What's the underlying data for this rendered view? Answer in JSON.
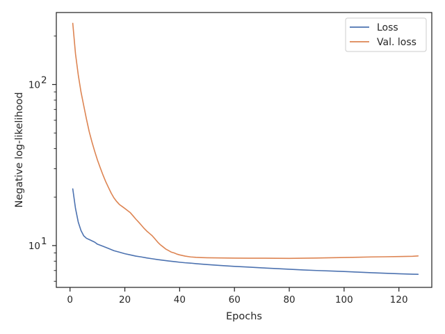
{
  "chart_data": {
    "type": "line",
    "xlabel": "Epochs",
    "ylabel": "Negative log-likelihood",
    "xlim": [
      -5,
      132
    ],
    "ylim": [
      5.5,
      280
    ],
    "yscale": "log",
    "grid": false,
    "legend_position": "top-right",
    "x_ticks": [
      0,
      20,
      40,
      60,
      80,
      100,
      120
    ],
    "y_ticks": [
      {
        "value": 10,
        "base": "10",
        "exp": "1"
      },
      {
        "value": 100,
        "base": "10",
        "exp": "2"
      }
    ],
    "series": [
      {
        "name": "Loss",
        "color": "#4c72b0",
        "points": [
          [
            1,
            22.5
          ],
          [
            2,
            17
          ],
          [
            3,
            14
          ],
          [
            4,
            12.4
          ],
          [
            5,
            11.5
          ],
          [
            6,
            11.1
          ],
          [
            7,
            10.9
          ],
          [
            8,
            10.7
          ],
          [
            9,
            10.5
          ],
          [
            10,
            10.2
          ],
          [
            12,
            9.9
          ],
          [
            14,
            9.6
          ],
          [
            16,
            9.3
          ],
          [
            18,
            9.1
          ],
          [
            20,
            8.9
          ],
          [
            22,
            8.75
          ],
          [
            24,
            8.6
          ],
          [
            26,
            8.5
          ],
          [
            28,
            8.38
          ],
          [
            30,
            8.28
          ],
          [
            32,
            8.18
          ],
          [
            34,
            8.1
          ],
          [
            36,
            8.02
          ],
          [
            38,
            7.95
          ],
          [
            40,
            7.88
          ],
          [
            42,
            7.82
          ],
          [
            44,
            7.78
          ],
          [
            46,
            7.72
          ],
          [
            48,
            7.67
          ],
          [
            50,
            7.62
          ],
          [
            55,
            7.52
          ],
          [
            60,
            7.43
          ],
          [
            65,
            7.35
          ],
          [
            70,
            7.27
          ],
          [
            75,
            7.2
          ],
          [
            80,
            7.13
          ],
          [
            85,
            7.06
          ],
          [
            90,
            7.0
          ],
          [
            95,
            6.95
          ],
          [
            100,
            6.9
          ],
          [
            105,
            6.84
          ],
          [
            110,
            6.78
          ],
          [
            115,
            6.73
          ],
          [
            120,
            6.68
          ],
          [
            125,
            6.64
          ],
          [
            127,
            6.63
          ]
        ]
      },
      {
        "name": "Val. loss",
        "color": "#dd8452",
        "points": [
          [
            1,
            240
          ],
          [
            2,
            155
          ],
          [
            3,
            115
          ],
          [
            4,
            90
          ],
          [
            5,
            74
          ],
          [
            6,
            61
          ],
          [
            7,
            51
          ],
          [
            8,
            44
          ],
          [
            9,
            38.5
          ],
          [
            10,
            34
          ],
          [
            11,
            30.5
          ],
          [
            12,
            27.5
          ],
          [
            13,
            25
          ],
          [
            14,
            23
          ],
          [
            15,
            21.2
          ],
          [
            16,
            19.8
          ],
          [
            17,
            18.8
          ],
          [
            18,
            18
          ],
          [
            19,
            17.5
          ],
          [
            20,
            17
          ],
          [
            21,
            16.5
          ],
          [
            22,
            16
          ],
          [
            23,
            15.3
          ],
          [
            24,
            14.6
          ],
          [
            25,
            14
          ],
          [
            26,
            13.4
          ],
          [
            27,
            12.8
          ],
          [
            28,
            12.3
          ],
          [
            29,
            11.9
          ],
          [
            30,
            11.5
          ],
          [
            31,
            11
          ],
          [
            32,
            10.5
          ],
          [
            33,
            10.1
          ],
          [
            34,
            9.8
          ],
          [
            35,
            9.5
          ],
          [
            36,
            9.3
          ],
          [
            37,
            9.1
          ],
          [
            38,
            9.0
          ],
          [
            39,
            8.85
          ],
          [
            40,
            8.75
          ],
          [
            42,
            8.6
          ],
          [
            44,
            8.5
          ],
          [
            46,
            8.45
          ],
          [
            48,
            8.42
          ],
          [
            50,
            8.4
          ],
          [
            55,
            8.38
          ],
          [
            60,
            8.36
          ],
          [
            65,
            8.35
          ],
          [
            70,
            8.35
          ],
          [
            75,
            8.34
          ],
          [
            80,
            8.33
          ],
          [
            85,
            8.35
          ],
          [
            90,
            8.37
          ],
          [
            95,
            8.4
          ],
          [
            100,
            8.43
          ],
          [
            105,
            8.46
          ],
          [
            110,
            8.5
          ],
          [
            115,
            8.52
          ],
          [
            120,
            8.55
          ],
          [
            125,
            8.58
          ],
          [
            127,
            8.62
          ]
        ]
      }
    ]
  }
}
